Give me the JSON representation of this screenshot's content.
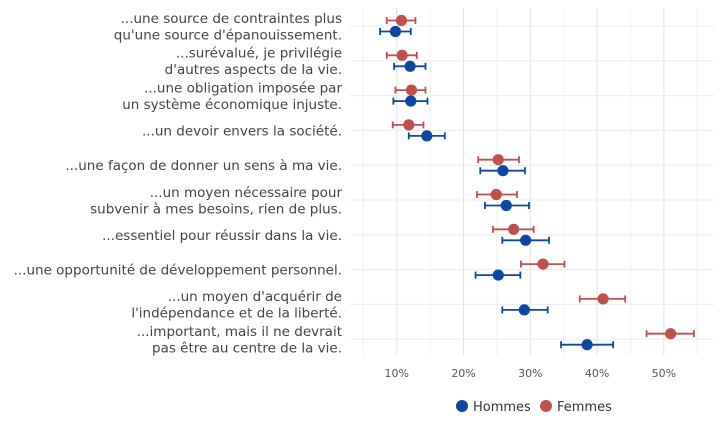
{
  "chart_data": {
    "type": "scatter",
    "title": "",
    "xlabel": "",
    "ylabel": "",
    "xlim": [
      0.03,
      0.575
    ],
    "x_ticks": [
      0.1,
      0.2,
      0.3,
      0.4,
      0.5
    ],
    "x_tick_labels": [
      "10%",
      "20%",
      "30%",
      "40%",
      "50%"
    ],
    "grid": true,
    "legend_position": "bottom",
    "categories": [
      [
        "...une source de contraintes plus",
        "qu'une source d'épanouissement."
      ],
      [
        "...surévalué, je privilégie",
        "d'autres aspects de la vie."
      ],
      [
        "...une obligation imposée par",
        "un système économique injuste."
      ],
      [
        "...un devoir envers la société."
      ],
      [
        "...une façon de donner un sens à ma vie."
      ],
      [
        "...un moyen nécessaire pour",
        "subvenir à mes besoins, rien de plus."
      ],
      [
        "...essentiel pour réussir dans la vie."
      ],
      [
        "...une opportunité de développement personnel."
      ],
      [
        "...un moyen d'acquérir de",
        "l'indépendance et de la liberté."
      ],
      [
        "...important, mais il ne devrait",
        "pas être au centre de la vie."
      ]
    ],
    "series": [
      {
        "name": "Hommes",
        "color": "#0d47a1",
        "values": [
          0.098,
          0.12,
          0.121,
          0.145,
          0.259,
          0.264,
          0.293,
          0.252,
          0.291,
          0.385
        ],
        "ci_low": [
          0.075,
          0.096,
          0.095,
          0.118,
          0.225,
          0.232,
          0.258,
          0.218,
          0.258,
          0.346
        ],
        "ci_high": [
          0.121,
          0.143,
          0.146,
          0.172,
          0.292,
          0.298,
          0.328,
          0.285,
          0.326,
          0.424
        ]
      },
      {
        "name": "Femmes",
        "color": "#c0504d",
        "values": [
          0.107,
          0.108,
          0.122,
          0.118,
          0.252,
          0.249,
          0.275,
          0.319,
          0.409,
          0.51
        ],
        "ci_low": [
          0.085,
          0.085,
          0.098,
          0.094,
          0.222,
          0.22,
          0.244,
          0.286,
          0.374,
          0.474
        ],
        "ci_high": [
          0.128,
          0.13,
          0.143,
          0.14,
          0.283,
          0.28,
          0.305,
          0.351,
          0.442,
          0.545
        ]
      }
    ]
  }
}
